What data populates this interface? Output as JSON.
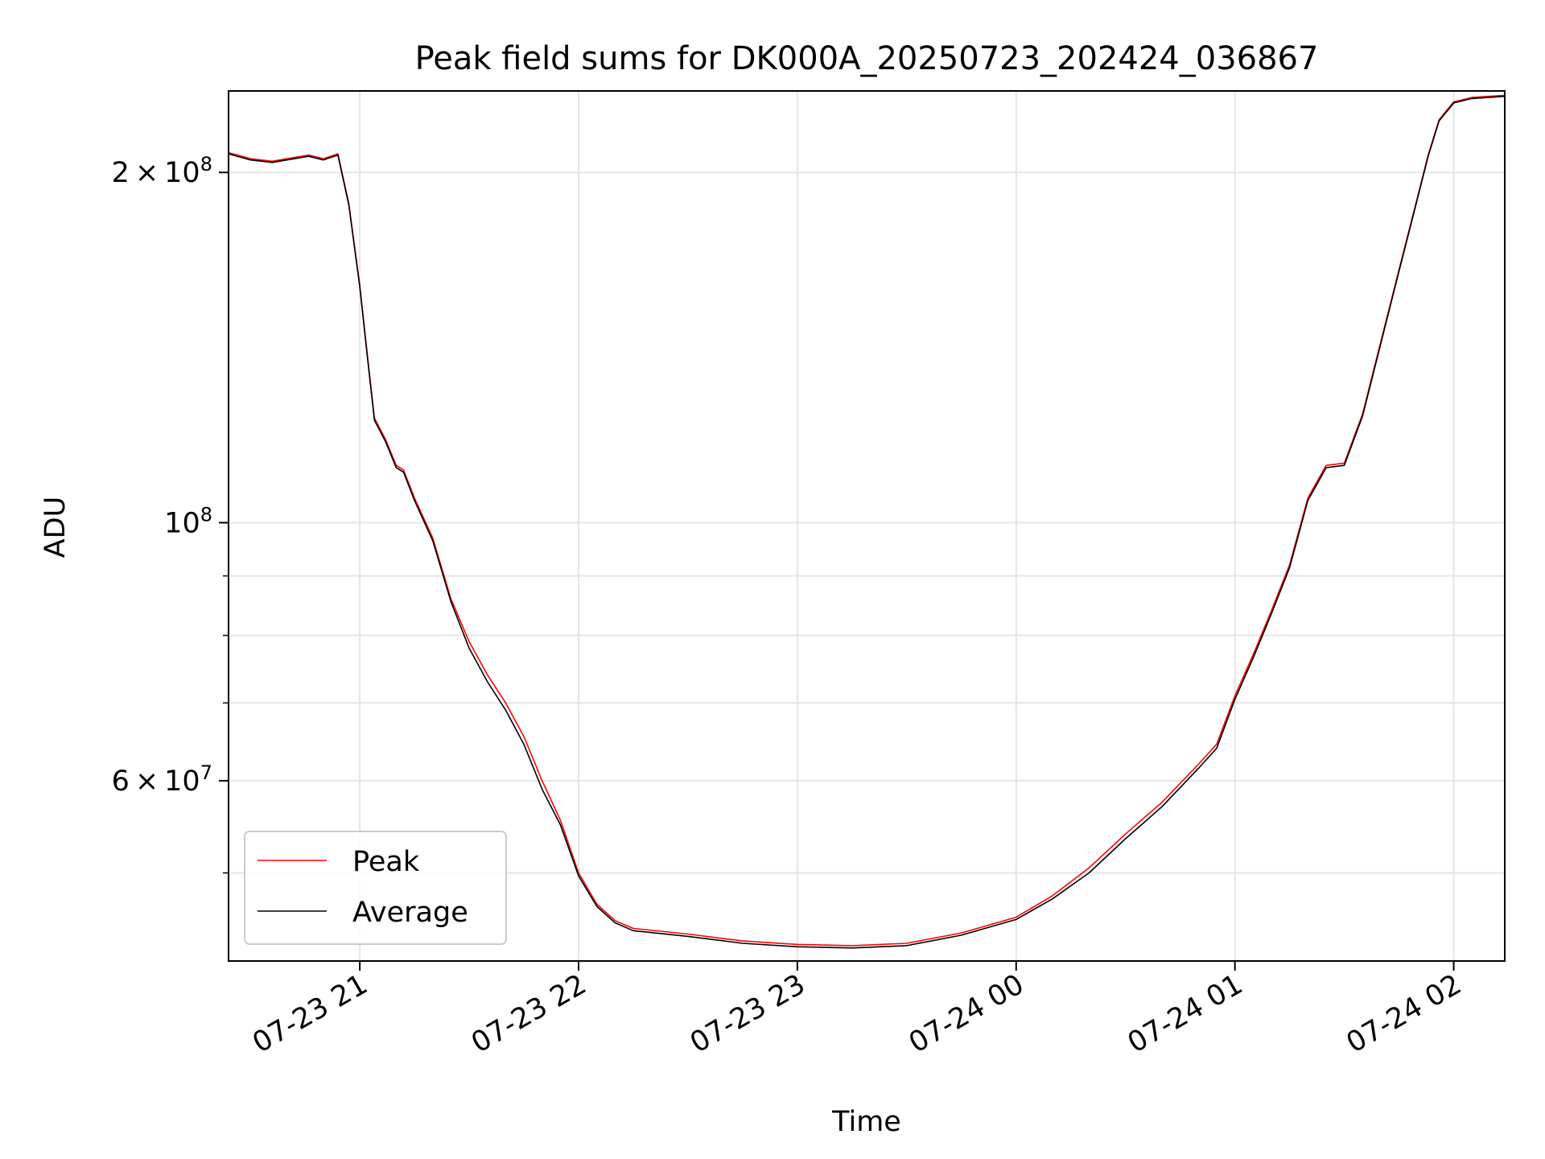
{
  "chart_data": {
    "type": "line",
    "title": "Peak field sums for DK000A_20250723_202424_036867",
    "xlabel": "Time",
    "ylabel": "ADU",
    "yscale": "log",
    "grid": true,
    "legend_position": "lower-left",
    "xlim": [
      "2025-07-23 20:24",
      "2025-07-24 02:14"
    ],
    "ylim": [
      42000000,
      235000000
    ],
    "x_ticks": [
      {
        "value": "2025-07-23 21:00",
        "label": "07-23 21"
      },
      {
        "value": "2025-07-23 22:00",
        "label": "07-23 22"
      },
      {
        "value": "2025-07-23 23:00",
        "label": "07-23 23"
      },
      {
        "value": "2025-07-24 00:00",
        "label": "07-24 00"
      },
      {
        "value": "2025-07-24 01:00",
        "label": "07-24 01"
      },
      {
        "value": "2025-07-24 02:00",
        "label": "07-24 02"
      }
    ],
    "y_major_ticks": [
      {
        "value": 200000000,
        "mantissa": "2",
        "exponent": "8"
      },
      {
        "value": 100000000,
        "mantissa": "",
        "exponent": "8"
      },
      {
        "value": 60000000,
        "mantissa": "6",
        "exponent": "7"
      }
    ],
    "y_minor_ticks": [
      50000000,
      70000000,
      80000000,
      90000000,
      300000000
    ],
    "times_symbol": "×",
    "base_label": "10",
    "series": [
      {
        "name": "Peak",
        "color": "#ff0000",
        "points": [
          [
            "2025-07-23 20:24",
            208000000
          ],
          [
            "2025-07-23 20:30",
            205500000
          ],
          [
            "2025-07-23 20:36",
            204500000
          ],
          [
            "2025-07-23 20:42",
            206000000
          ],
          [
            "2025-07-23 20:46",
            207000000
          ],
          [
            "2025-07-23 20:50",
            205500000
          ],
          [
            "2025-07-23 20:54",
            207500000
          ],
          [
            "2025-07-23 20:57",
            188000000
          ],
          [
            "2025-07-23 21:00",
            160000000
          ],
          [
            "2025-07-23 21:02",
            140000000
          ],
          [
            "2025-07-23 21:04",
            123000000
          ],
          [
            "2025-07-23 21:07",
            118000000
          ],
          [
            "2025-07-23 21:10",
            112000000
          ],
          [
            "2025-07-23 21:12",
            111000000
          ],
          [
            "2025-07-23 21:15",
            105000000
          ],
          [
            "2025-07-23 21:20",
            97000000
          ],
          [
            "2025-07-23 21:25",
            86000000
          ],
          [
            "2025-07-23 21:30",
            79000000
          ],
          [
            "2025-07-23 21:35",
            74000000
          ],
          [
            "2025-07-23 21:40",
            70000000
          ],
          [
            "2025-07-23 21:45",
            65500000
          ],
          [
            "2025-07-23 21:50",
            60000000
          ],
          [
            "2025-07-23 21:55",
            55500000
          ],
          [
            "2025-07-23 22:00",
            50000000
          ],
          [
            "2025-07-23 22:05",
            47000000
          ],
          [
            "2025-07-23 22:10",
            45500000
          ],
          [
            "2025-07-23 22:15",
            44800000
          ],
          [
            "2025-07-23 22:30",
            44300000
          ],
          [
            "2025-07-23 22:45",
            43700000
          ],
          [
            "2025-07-23 23:00",
            43400000
          ],
          [
            "2025-07-23 23:15",
            43300000
          ],
          [
            "2025-07-23 23:30",
            43500000
          ],
          [
            "2025-07-23 23:45",
            44400000
          ],
          [
            "2025-07-24 00:00",
            45800000
          ],
          [
            "2025-07-24 00:10",
            47800000
          ],
          [
            "2025-07-24 00:20",
            50500000
          ],
          [
            "2025-07-24 00:30",
            54000000
          ],
          [
            "2025-07-24 00:40",
            57500000
          ],
          [
            "2025-07-24 00:50",
            62000000
          ],
          [
            "2025-07-24 00:55",
            64500000
          ],
          [
            "2025-07-24 01:00",
            71000000
          ],
          [
            "2025-07-24 01:05",
            77000000
          ],
          [
            "2025-07-24 01:10",
            84000000
          ],
          [
            "2025-07-24 01:15",
            92000000
          ],
          [
            "2025-07-24 01:20",
            105000000
          ],
          [
            "2025-07-24 01:25",
            112000000
          ],
          [
            "2025-07-24 01:30",
            112500000
          ],
          [
            "2025-07-24 01:35",
            124000000
          ],
          [
            "2025-07-24 01:40",
            143000000
          ],
          [
            "2025-07-24 01:45",
            165000000
          ],
          [
            "2025-07-24 01:50",
            190000000
          ],
          [
            "2025-07-24 01:53",
            207000000
          ],
          [
            "2025-07-24 01:56",
            222000000
          ],
          [
            "2025-07-24 02:00",
            230000000
          ],
          [
            "2025-07-24 02:05",
            232000000
          ],
          [
            "2025-07-24 02:14",
            233000000
          ]
        ]
      },
      {
        "name": "Average",
        "color": "#000000",
        "points": [
          [
            "2025-07-23 20:24",
            207500000
          ],
          [
            "2025-07-23 20:30",
            205000000
          ],
          [
            "2025-07-23 20:36",
            204000000
          ],
          [
            "2025-07-23 20:42",
            205500000
          ],
          [
            "2025-07-23 20:46",
            206500000
          ],
          [
            "2025-07-23 20:50",
            205000000
          ],
          [
            "2025-07-23 20:54",
            207000000
          ],
          [
            "2025-07-23 20:57",
            187500000
          ],
          [
            "2025-07-23 21:00",
            159500000
          ],
          [
            "2025-07-23 21:02",
            139500000
          ],
          [
            "2025-07-23 21:04",
            122500000
          ],
          [
            "2025-07-23 21:07",
            117500000
          ],
          [
            "2025-07-23 21:10",
            111500000
          ],
          [
            "2025-07-23 21:12",
            110500000
          ],
          [
            "2025-07-23 21:15",
            104500000
          ],
          [
            "2025-07-23 21:20",
            96500000
          ],
          [
            "2025-07-23 21:25",
            85500000
          ],
          [
            "2025-07-23 21:30",
            78000000
          ],
          [
            "2025-07-23 21:35",
            73000000
          ],
          [
            "2025-07-23 21:40",
            69000000
          ],
          [
            "2025-07-23 21:45",
            64500000
          ],
          [
            "2025-07-23 21:50",
            59000000
          ],
          [
            "2025-07-23 21:55",
            55000000
          ],
          [
            "2025-07-23 22:00",
            49700000
          ],
          [
            "2025-07-23 22:05",
            46800000
          ],
          [
            "2025-07-23 22:10",
            45300000
          ],
          [
            "2025-07-23 22:15",
            44600000
          ],
          [
            "2025-07-23 22:30",
            44100000
          ],
          [
            "2025-07-23 22:45",
            43500000
          ],
          [
            "2025-07-23 23:00",
            43200000
          ],
          [
            "2025-07-23 23:15",
            43100000
          ],
          [
            "2025-07-23 23:30",
            43300000
          ],
          [
            "2025-07-23 23:45",
            44200000
          ],
          [
            "2025-07-24 00:00",
            45600000
          ],
          [
            "2025-07-24 00:10",
            47500000
          ],
          [
            "2025-07-24 00:20",
            50000000
          ],
          [
            "2025-07-24 00:30",
            53500000
          ],
          [
            "2025-07-24 00:40",
            57000000
          ],
          [
            "2025-07-24 00:50",
            61500000
          ],
          [
            "2025-07-24 00:55",
            64000000
          ],
          [
            "2025-07-24 01:00",
            70500000
          ],
          [
            "2025-07-24 01:05",
            76500000
          ],
          [
            "2025-07-24 01:10",
            83500000
          ],
          [
            "2025-07-24 01:15",
            91500000
          ],
          [
            "2025-07-24 01:20",
            104500000
          ],
          [
            "2025-07-24 01:25",
            111500000
          ],
          [
            "2025-07-24 01:30",
            112000000
          ],
          [
            "2025-07-24 01:35",
            123500000
          ],
          [
            "2025-07-24 01:40",
            142500000
          ],
          [
            "2025-07-24 01:45",
            164500000
          ],
          [
            "2025-07-24 01:50",
            189500000
          ],
          [
            "2025-07-24 01:53",
            206500000
          ],
          [
            "2025-07-24 01:56",
            221500000
          ],
          [
            "2025-07-24 02:00",
            229500000
          ],
          [
            "2025-07-24 02:05",
            231500000
          ],
          [
            "2025-07-24 02:14",
            232500000
          ]
        ]
      }
    ]
  }
}
